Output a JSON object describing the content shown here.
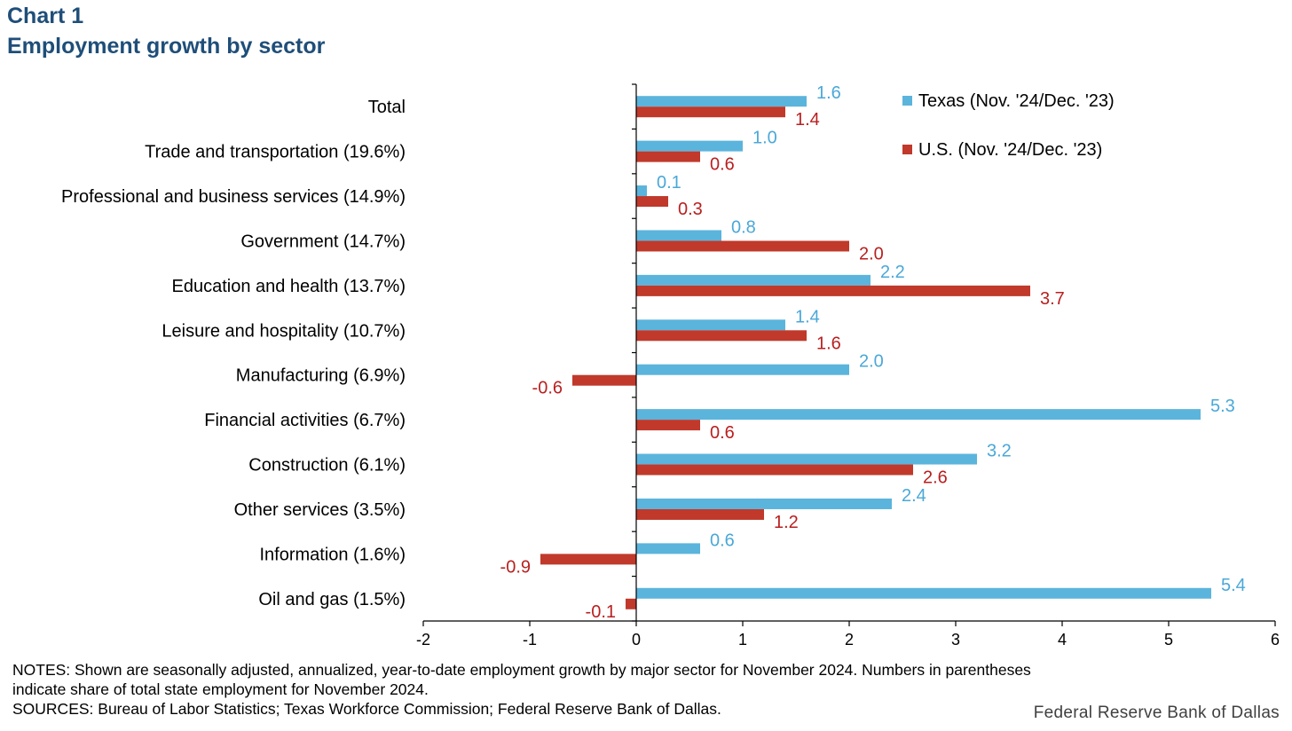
{
  "header": {
    "chart_number": "Chart 1",
    "title": "Employment growth by sector"
  },
  "chart_data": {
    "type": "bar",
    "orientation": "horizontal",
    "categories": [
      "Total",
      "Trade and transportation (19.6%)",
      "Professional and business services (14.9%)",
      "Government (14.7%)",
      "Education and health (13.7%)",
      "Leisure and hospitality (10.7%)",
      "Manufacturing (6.9%)",
      "Financial activities (6.7%)",
      "Construction (6.1%)",
      "Other services (3.5%)",
      "Information (1.6%)",
      "Oil and gas (1.5%)"
    ],
    "series": [
      {
        "name": "Texas (Nov. '24/Dec. '23)",
        "color": "#5bb4dc",
        "label_color": "#4aa8d8",
        "values": [
          1.6,
          1.0,
          0.1,
          0.8,
          2.2,
          1.4,
          2.0,
          5.3,
          3.2,
          2.4,
          0.6,
          5.4
        ],
        "labels": [
          "1.6",
          "1.0",
          "0.1",
          "0.8",
          "2.2",
          "1.4",
          "2.0",
          "5.3",
          "3.2",
          "2.4",
          "0.6",
          "5.4"
        ]
      },
      {
        "name": "U.S. (Nov. '24/Dec. '23)",
        "color": "#c0392b",
        "label_color": "#b91f1f",
        "values": [
          1.4,
          0.6,
          0.3,
          2.0,
          3.7,
          1.6,
          -0.6,
          0.6,
          2.6,
          1.2,
          -0.9,
          -0.1
        ],
        "labels": [
          "1.4",
          "0.6",
          "0.3",
          "2.0",
          "3.7",
          "1.6",
          "-0.6",
          "0.6",
          "2.6",
          "1.2",
          "-0.9",
          "-0.1"
        ]
      }
    ],
    "xlim": [
      -2,
      6
    ],
    "xticks": [
      -2,
      -1,
      0,
      1,
      2,
      3,
      4,
      5,
      6
    ],
    "xtick_labels": [
      "-2",
      "-1",
      "0",
      "1",
      "2",
      "3",
      "4",
      "5",
      "6"
    ],
    "grid": false,
    "legend_position": "top-right"
  },
  "notes": {
    "line1": "NOTES: Shown are seasonally adjusted, annualized,  year-to-date employment growth by major sector for November 2024. Numbers in parentheses",
    "line2": "indicate share of total state employment  for November 2024.",
    "line3": "SOURCES: Bureau of Labor Statistics; Texas Workforce Commission; Federal Reserve Bank of Dallas."
  },
  "brand": "Federal Reserve Bank of Dallas"
}
